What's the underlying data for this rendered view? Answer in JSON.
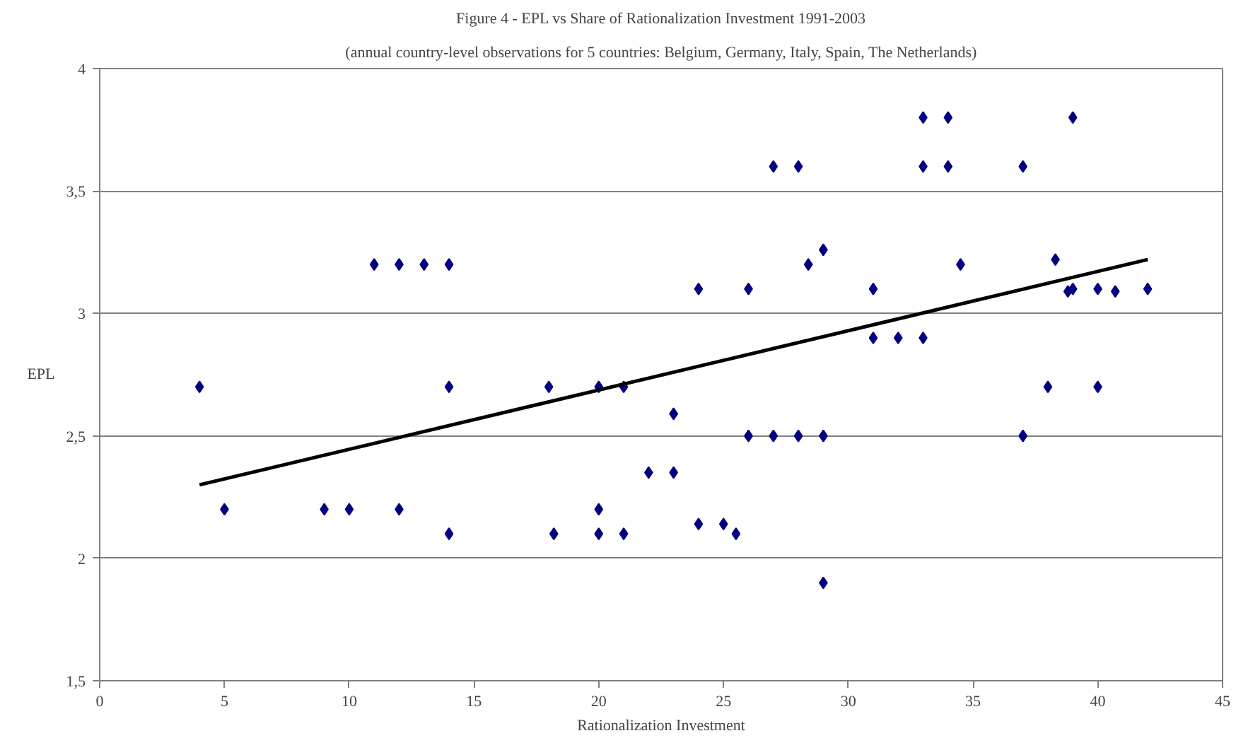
{
  "chart_data": {
    "type": "scatter",
    "title": "Figure 4 - EPL vs Share of Rationalization Investment 1991-2003",
    "subtitle": "(annual country-level observations for 5 countries: Belgium, Germany, Italy, Spain, The Netherlands)",
    "xlabel": "Rationalization Investment",
    "ylabel": "EPL",
    "xlim": [
      0,
      45
    ],
    "xticks": [
      0,
      5,
      10,
      15,
      20,
      25,
      30,
      35,
      40,
      45
    ],
    "ylim": [
      1.5,
      4
    ],
    "yticks": [
      {
        "value": 1.5,
        "label": "1,5"
      },
      2,
      {
        "value": 2.5,
        "label": "2,5"
      },
      3,
      {
        "value": 3.5,
        "label": "3,5"
      },
      4
    ],
    "grid": "y",
    "marker": "diamond",
    "series": [
      {
        "color": "#000080",
        "x": [
          4,
          5,
          9,
          10,
          11,
          12,
          13,
          14,
          12,
          14,
          14,
          18,
          18.2,
          20,
          20,
          20,
          21,
          21,
          22,
          23,
          23,
          24,
          24,
          25,
          25.5,
          26,
          26,
          27,
          27,
          28,
          28,
          28.4,
          29,
          29,
          29,
          31,
          31,
          32,
          33,
          33,
          33,
          34,
          34,
          34.5,
          37,
          37,
          38,
          38.3,
          38.8,
          39,
          39,
          40,
          40,
          40.7,
          42
        ],
        "values": [
          2.7,
          2.2,
          2.2,
          2.2,
          3.2,
          3.2,
          3.2,
          3.2,
          2.2,
          2.7,
          2.1,
          2.7,
          2.1,
          2.7,
          2.2,
          2.1,
          2.7,
          2.1,
          2.35,
          2.35,
          2.59,
          3.1,
          2.14,
          2.14,
          2.1,
          3.1,
          2.5,
          3.6,
          2.5,
          3.6,
          2.5,
          3.2,
          3.26,
          2.5,
          1.9,
          3.1,
          2.9,
          2.9,
          3.8,
          3.6,
          2.9,
          3.8,
          3.6,
          3.2,
          3.6,
          2.5,
          2.7,
          3.22,
          3.09,
          3.1,
          3.8,
          3.1,
          2.7,
          3.09,
          3.1
        ]
      },
      {
        "type": "line",
        "marker": "none",
        "color": "#000000",
        "x": [
          4,
          42
        ],
        "values": [
          2.3,
          3.22
        ]
      }
    ]
  }
}
